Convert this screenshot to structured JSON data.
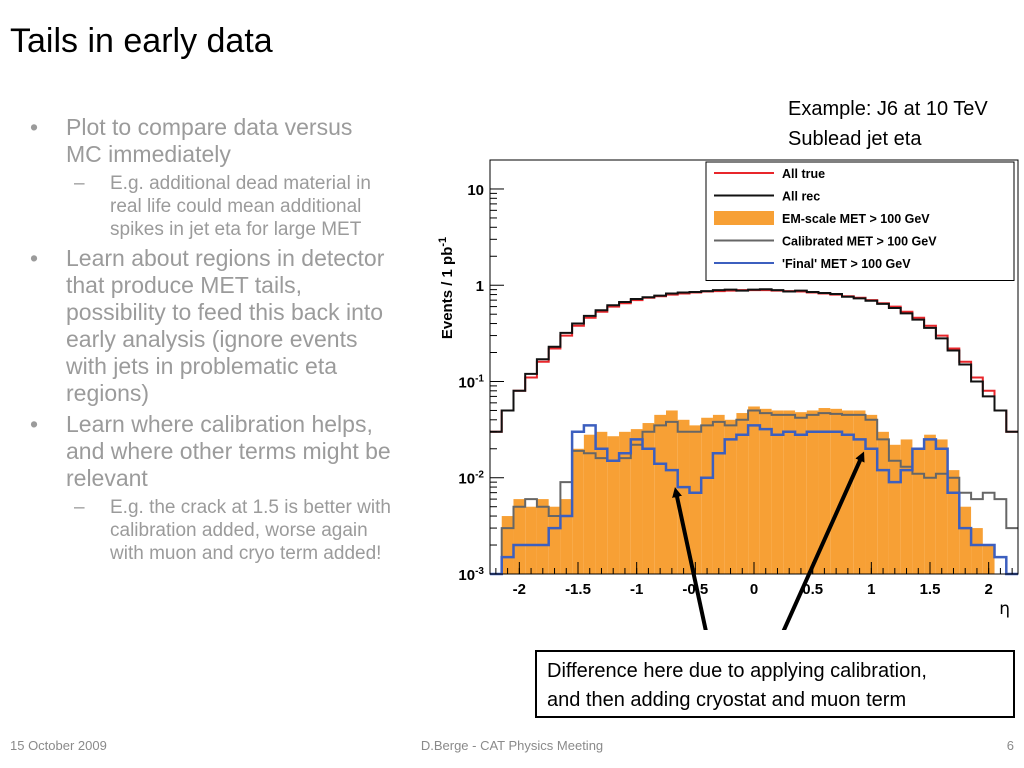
{
  "slide": {
    "title": "Tails in early data",
    "example_line1": "Example: J6 at 10 TeV",
    "example_line2": "Sublead jet eta",
    "callout_line1": "Difference here due to applying calibration,",
    "callout_line2": "and then adding cryostat and muon term",
    "footer_left": "15 October 2009",
    "footer_center": "D.Berge - CAT Physics Meeting",
    "footer_right": "6"
  },
  "bullets": [
    {
      "text": "Plot to compare data versus MC immediately",
      "sub": [
        "E.g. additional dead material in real life could mean additional spikes in jet eta for large MET"
      ]
    },
    {
      "text": "Learn about regions in detector that produce MET tails, possibility to feed this back into early analysis (ignore events with jets in problematic eta regions)",
      "sub": []
    },
    {
      "text": "Learn where calibration helps, and where other terms might be relevant",
      "sub": [
        "E.g. the crack at 1.5 is better with calibration added, worse again with muon and cryo term added!"
      ]
    }
  ],
  "chart_data": {
    "type": "line",
    "xlabel": "η",
    "ylabel": "Events / 1 pb",
    "ylabel_sup": "-1",
    "xlim": [
      -2.25,
      2.25
    ],
    "ylim": [
      0.001,
      20
    ],
    "log_y": true,
    "grid": false,
    "legend_position": "top-right",
    "x_ticks": [
      -2,
      -1.5,
      -1,
      -0.5,
      0,
      0.5,
      1,
      1.5,
      2
    ],
    "x_tick_labels": [
      "-2",
      "-1.5",
      "-1",
      "-0.5",
      "0",
      "0.5",
      "1",
      "1.5",
      "2"
    ],
    "y_ticks": [
      0.001,
      0.01,
      0.1,
      1,
      10
    ],
    "y_tick_labels": [
      {
        "b": "10",
        "e": "-3"
      },
      {
        "b": "10",
        "e": "-2"
      },
      {
        "b": "10",
        "e": "-1"
      },
      {
        "b": "1",
        "e": ""
      },
      {
        "b": "10",
        "e": ""
      }
    ],
    "x": [
      -2.2,
      -2.1,
      -2.0,
      -1.9,
      -1.8,
      -1.7,
      -1.6,
      -1.5,
      -1.4,
      -1.3,
      -1.2,
      -1.1,
      -1.0,
      -0.9,
      -0.8,
      -0.7,
      -0.6,
      -0.5,
      -0.4,
      -0.3,
      -0.2,
      -0.1,
      0.0,
      0.1,
      0.2,
      0.3,
      0.4,
      0.5,
      0.6,
      0.7,
      0.8,
      0.9,
      1.0,
      1.1,
      1.2,
      1.3,
      1.4,
      1.5,
      1.6,
      1.7,
      1.8,
      1.9,
      2.0,
      2.1,
      2.2
    ],
    "series": [
      {
        "name": "All true",
        "color": "#e8262b",
        "style": "line",
        "values": [
          0.03,
          0.05,
          0.08,
          0.11,
          0.16,
          0.22,
          0.3,
          0.38,
          0.46,
          0.53,
          0.6,
          0.65,
          0.7,
          0.74,
          0.77,
          0.8,
          0.82,
          0.84,
          0.86,
          0.87,
          0.88,
          0.89,
          0.89,
          0.89,
          0.88,
          0.87,
          0.86,
          0.84,
          0.82,
          0.8,
          0.77,
          0.74,
          0.7,
          0.65,
          0.6,
          0.53,
          0.46,
          0.38,
          0.3,
          0.22,
          0.16,
          0.11,
          0.08,
          0.05,
          0.03
        ]
      },
      {
        "name": "All rec",
        "color": "#111111",
        "style": "line",
        "values": [
          0.03,
          0.05,
          0.08,
          0.12,
          0.17,
          0.23,
          0.32,
          0.4,
          0.48,
          0.55,
          0.62,
          0.67,
          0.72,
          0.75,
          0.78,
          0.82,
          0.84,
          0.85,
          0.87,
          0.89,
          0.9,
          0.88,
          0.9,
          0.91,
          0.89,
          0.86,
          0.88,
          0.85,
          0.83,
          0.81,
          0.76,
          0.73,
          0.69,
          0.64,
          0.58,
          0.51,
          0.44,
          0.36,
          0.28,
          0.21,
          0.15,
          0.1,
          0.07,
          0.05,
          0.03
        ]
      },
      {
        "name": "EM-scale MET > 100 GeV",
        "color": "#f7a035",
        "style": "fill",
        "values": [
          0.001,
          0.004,
          0.006,
          0.005,
          0.006,
          0.005,
          0.006,
          0.02,
          0.028,
          0.03,
          0.027,
          0.03,
          0.032,
          0.037,
          0.045,
          0.05,
          0.04,
          0.035,
          0.042,
          0.045,
          0.04,
          0.047,
          0.055,
          0.052,
          0.05,
          0.05,
          0.048,
          0.05,
          0.053,
          0.052,
          0.05,
          0.05,
          0.045,
          0.03,
          0.022,
          0.025,
          0.02,
          0.028,
          0.025,
          0.012,
          0.005,
          0.003,
          0.002,
          0.001,
          0.001
        ]
      },
      {
        "name": "Calibrated MET > 100 GeV",
        "color": "#666666",
        "style": "line",
        "values": [
          0.001,
          0.003,
          0.005,
          0.006,
          0.005,
          0.004,
          0.009,
          0.019,
          0.018,
          0.016,
          0.015,
          0.016,
          0.022,
          0.03,
          0.035,
          0.038,
          0.03,
          0.03,
          0.035,
          0.038,
          0.035,
          0.04,
          0.05,
          0.047,
          0.045,
          0.045,
          0.042,
          0.045,
          0.047,
          0.046,
          0.045,
          0.045,
          0.04,
          0.025,
          0.015,
          0.013,
          0.011,
          0.01,
          0.011,
          0.01,
          0.007,
          0.006,
          0.007,
          0.006,
          0.003
        ]
      },
      {
        "name": "'Final' MET > 100 GeV",
        "color": "#3c5fbf",
        "style": "line",
        "values": [
          0.001,
          0.0015,
          0.002,
          0.002,
          0.002,
          0.003,
          0.004,
          0.03,
          0.035,
          0.02,
          0.015,
          0.018,
          0.025,
          0.02,
          0.014,
          0.012,
          0.008,
          0.007,
          0.01,
          0.018,
          0.025,
          0.028,
          0.035,
          0.032,
          0.028,
          0.03,
          0.028,
          0.03,
          0.03,
          0.03,
          0.028,
          0.025,
          0.02,
          0.012,
          0.009,
          0.012,
          0.02,
          0.025,
          0.02,
          0.007,
          0.003,
          0.002,
          0.002,
          0.0015,
          0.001
        ]
      }
    ]
  }
}
